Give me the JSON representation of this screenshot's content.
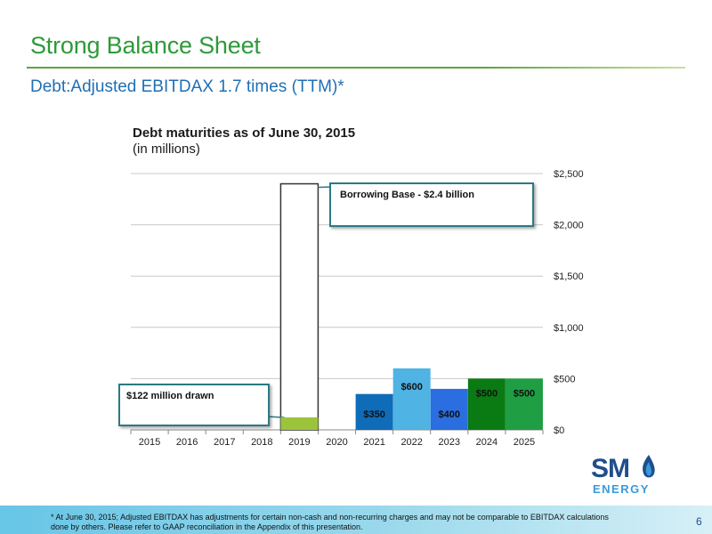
{
  "header": {
    "title": "Strong Balance Sheet",
    "subtitle": "Debt:Adjusted EBITDAX 1.7 times (TTM)*"
  },
  "chart_data": {
    "type": "bar",
    "title": "Debt maturities as of June 30, 2015",
    "subtitle": "(in millions)",
    "categories": [
      "2015",
      "2016",
      "2017",
      "2018",
      "2019",
      "2020",
      "2021",
      "2022",
      "2023",
      "2024",
      "2025"
    ],
    "series": [
      {
        "values": [
          0,
          0,
          0,
          0,
          122,
          0,
          350,
          600,
          400,
          500,
          500
        ],
        "data_labels": [
          "",
          "",
          "",
          "",
          "",
          "",
          "$350",
          "$600",
          "$400",
          "$500",
          "$500"
        ],
        "colors": [
          "",
          "",
          "",
          "",
          "#9bc43c",
          "",
          "#0f6cb8",
          "#4fb3e3",
          "#2a6ee0",
          "#0a7a12",
          "#1f9e44"
        ]
      }
    ],
    "outline_bar": {
      "category": "2019",
      "value": 2400
    },
    "ylim": [
      0,
      2500
    ],
    "yticks": [
      0,
      500,
      1000,
      1500,
      2000,
      2500
    ],
    "ytick_labels": [
      "$0",
      "$500",
      "$1,000",
      "$1,500",
      "$2,000",
      "$2,500"
    ],
    "y_axis_position": "right",
    "grid": true,
    "annotations": {
      "borrowing_base": "Borrowing Base - $2.4 billion",
      "drawn": "$122 million drawn"
    }
  },
  "logo": {
    "main": "SM",
    "sub": "ENERGY"
  },
  "footer": {
    "note": "* At June 30, 2015; Adjusted EBITDAX has adjustments for certain non-cash and non-recurring charges and may not be comparable to EBITDAX calculations done by others. Please refer to GAAP reconciliation in the Appendix of this presentation.",
    "page": "6"
  },
  "colors": {
    "title": "#2e9a3a",
    "subtitle": "#1f6fb5",
    "callout_border": "#2a7a84"
  }
}
